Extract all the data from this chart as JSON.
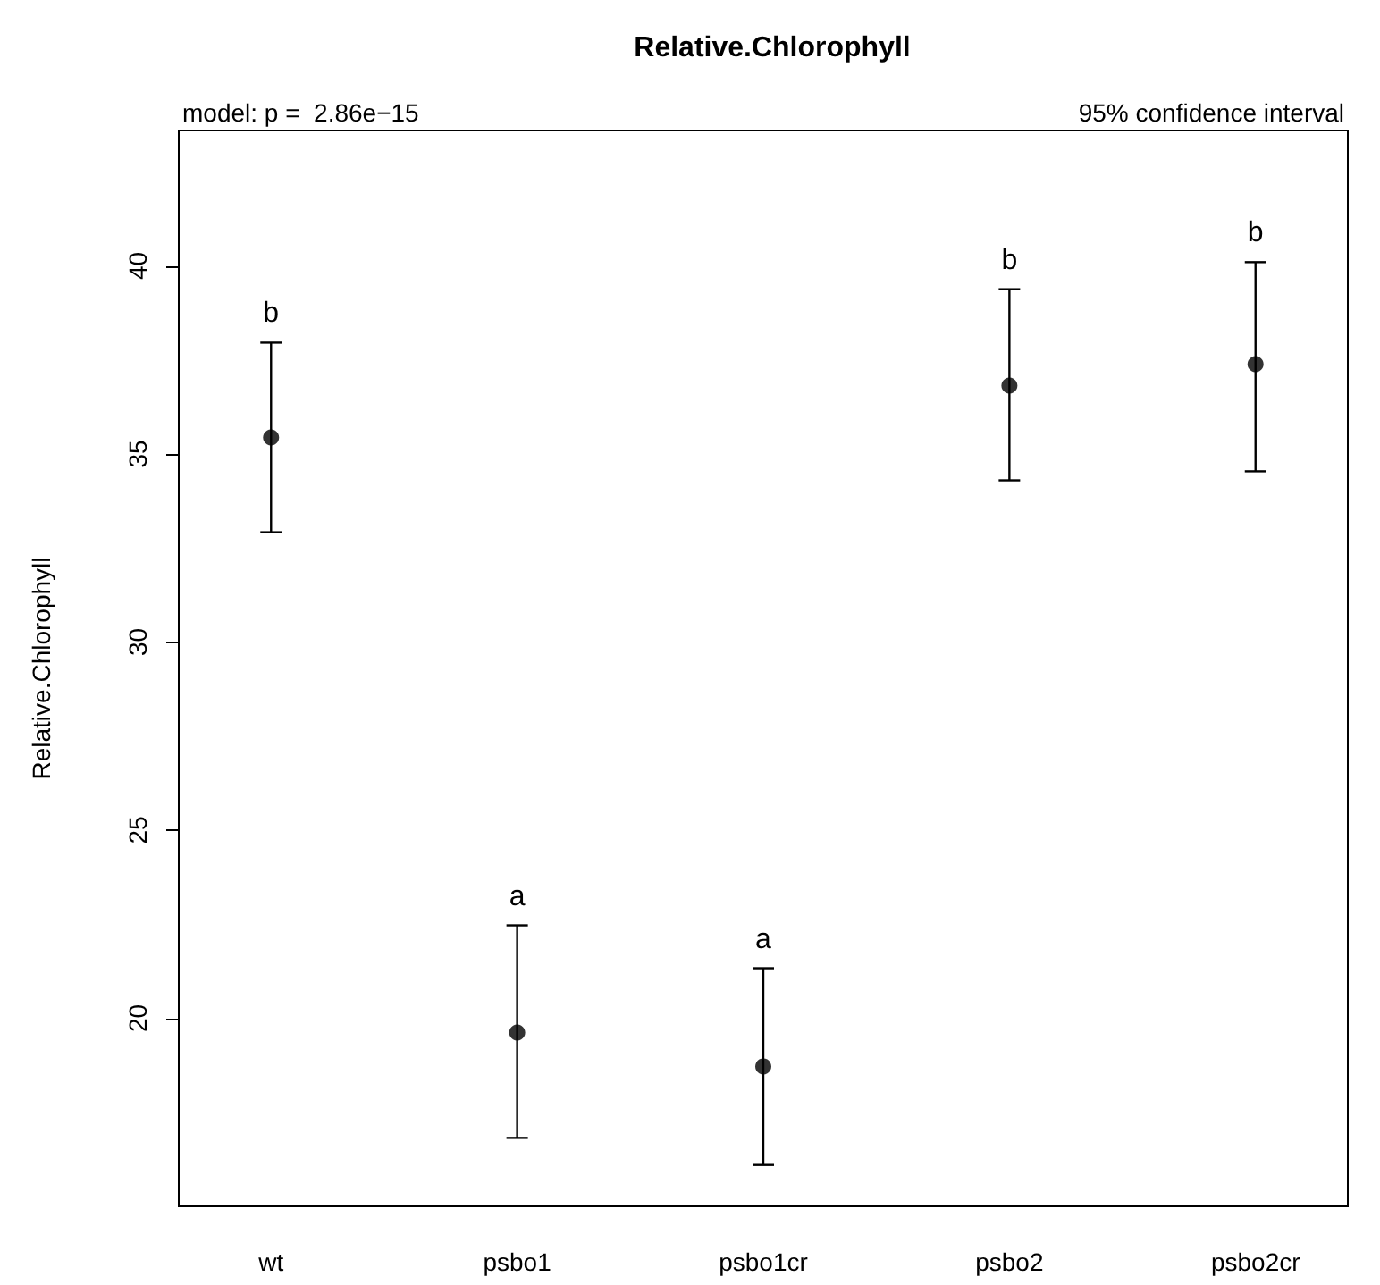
{
  "chart_data": {
    "type": "scatter",
    "title": "Relative.Chlorophyll",
    "ylabel": "Relative.Chlorophyll",
    "annotations": [
      "model: p =  2.86e−15",
      "95% confidence interval",
      "b",
      "a",
      "a",
      "b",
      "b"
    ],
    "categories": [
      "wt",
      "psbo1",
      "psbo1cr",
      "psbo2",
      "psbo2cr"
    ],
    "series": [
      {
        "color": "#000000",
        "values": [
          35.44,
          19.62,
          18.72,
          36.82,
          37.39
        ],
        "errors": [
          [
            32.92,
            37.96
          ],
          [
            16.82,
            22.47
          ],
          [
            16.1,
            21.33
          ],
          [
            34.3,
            39.38
          ],
          [
            34.54,
            40.1
          ]
        ]
      }
    ],
    "ylim": [
      15.0,
      43.6
    ],
    "yticks": [
      20,
      25,
      30,
      35,
      40
    ],
    "marker": "circle"
  }
}
